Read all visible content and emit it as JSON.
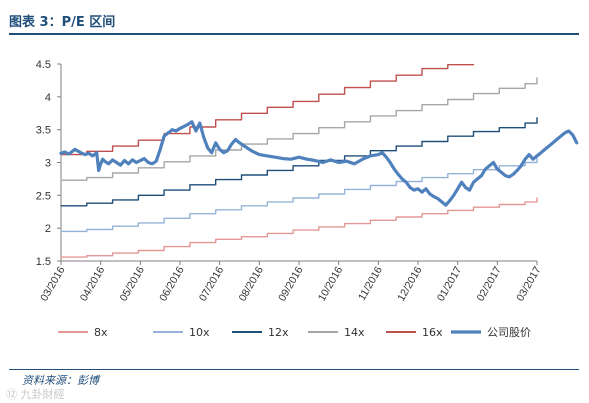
{
  "figure": {
    "title": "图表 3：P/E 区间",
    "source": "资料来源：彭博",
    "watermark": "⑫ 九卦財經"
  },
  "chart_data": {
    "type": "line",
    "title": "",
    "xlabel": "",
    "ylabel": "",
    "ylim": [
      1.5,
      4.5
    ],
    "yticks": [
      1.5,
      2,
      2.5,
      3,
      3.5,
      4,
      4.5
    ],
    "xticks": [
      "03/2016",
      "04/2016",
      "05/2016",
      "06/2016",
      "07/2016",
      "08/2016",
      "09/2016",
      "10/2016",
      "11/2016",
      "12/2016",
      "01/2017",
      "02/2017",
      "03/2017"
    ],
    "grid": false,
    "legend_position": "bottom",
    "series": [
      {
        "name": "8x",
        "color": "#e39896",
        "width": 1.4,
        "step_values": [
          1.56,
          1.58,
          1.62,
          1.66,
          1.72,
          1.78,
          1.83,
          1.87,
          1.92,
          1.97,
          2.02,
          2.07,
          2.12,
          2.17,
          2.22,
          2.27,
          2.32,
          2.36,
          2.4,
          2.43
        ]
      },
      {
        "name": "10x",
        "color": "#95b3d7",
        "width": 1.4,
        "step_values": [
          1.95,
          1.98,
          2.03,
          2.08,
          2.15,
          2.22,
          2.28,
          2.34,
          2.4,
          2.46,
          2.52,
          2.59,
          2.65,
          2.71,
          2.77,
          2.83,
          2.89,
          2.95,
          3.0,
          3.04
        ]
      },
      {
        "name": "12x",
        "color": "#1f4e79",
        "width": 1.4,
        "step_values": [
          2.34,
          2.38,
          2.43,
          2.5,
          2.58,
          2.66,
          2.74,
          2.81,
          2.88,
          2.95,
          3.03,
          3.1,
          3.18,
          3.25,
          3.32,
          3.4,
          3.47,
          3.53,
          3.6,
          3.65
        ]
      },
      {
        "name": "14x",
        "color": "#a6a6a6",
        "width": 1.4,
        "step_values": [
          2.73,
          2.77,
          2.84,
          2.92,
          3.01,
          3.1,
          3.19,
          3.28,
          3.36,
          3.44,
          3.53,
          3.62,
          3.71,
          3.79,
          3.88,
          3.96,
          4.05,
          4.13,
          4.2,
          4.26
        ]
      },
      {
        "name": "16x",
        "color": "#c0504d",
        "width": 1.4,
        "step_values": [
          3.12,
          3.17,
          3.25,
          3.34,
          3.44,
          3.54,
          3.65,
          3.75,
          3.84,
          3.93,
          4.04,
          4.14,
          4.24,
          4.33,
          4.43,
          4.49
        ]
      },
      {
        "name": "公司股价",
        "color": "#4f81bd",
        "width": 3.2,
        "x": [
          0.0,
          0.1,
          0.2,
          0.35,
          0.5,
          0.6,
          0.7,
          0.8,
          0.9,
          0.95,
          1.0,
          1.05,
          1.1,
          1.2,
          1.3,
          1.4,
          1.5,
          1.6,
          1.7,
          1.8,
          1.9,
          2.0,
          2.1,
          2.2,
          2.3,
          2.4,
          2.5,
          2.6,
          2.7,
          2.75,
          2.8,
          2.9,
          3.0,
          3.1,
          3.2,
          3.3,
          3.4,
          3.5,
          3.6,
          3.7,
          3.8,
          3.9,
          4.0,
          4.1,
          4.2,
          4.3,
          4.4,
          4.5,
          4.6,
          4.7,
          4.8,
          4.9,
          5.0,
          5.2,
          5.4,
          5.6,
          5.8,
          6.0,
          6.2,
          6.4,
          6.6,
          6.8,
          7.0,
          7.2,
          7.4,
          7.6,
          7.8,
          8.0,
          8.1,
          8.2,
          8.3,
          8.4,
          8.5,
          8.6,
          8.7,
          8.8,
          8.9,
          9.0,
          9.1,
          9.2,
          9.3,
          9.4,
          9.5,
          9.6,
          9.7,
          9.8,
          9.9,
          10.0,
          10.1,
          10.2,
          10.3,
          10.4,
          10.5,
          10.6,
          10.7,
          10.8,
          10.9,
          11.0,
          11.1,
          11.2,
          11.3,
          11.4,
          11.5,
          11.6,
          11.7,
          11.8,
          11.9,
          12.0,
          12.1,
          12.2,
          12.3,
          12.4,
          12.5,
          12.6,
          12.7,
          12.8,
          12.9,
          13.0
        ],
        "y": [
          3.14,
          3.16,
          3.13,
          3.2,
          3.15,
          3.12,
          3.14,
          3.1,
          3.15,
          2.88,
          2.98,
          3.05,
          3.02,
          2.98,
          3.04,
          3.0,
          2.96,
          3.03,
          2.98,
          3.04,
          3.0,
          3.03,
          3.06,
          3.0,
          2.98,
          3.02,
          3.2,
          3.4,
          3.45,
          3.47,
          3.5,
          3.48,
          3.52,
          3.55,
          3.58,
          3.62,
          3.48,
          3.6,
          3.38,
          3.22,
          3.15,
          3.3,
          3.2,
          3.15,
          3.18,
          3.28,
          3.35,
          3.3,
          3.26,
          3.22,
          3.18,
          3.15,
          3.12,
          3.1,
          3.08,
          3.06,
          3.05,
          3.08,
          3.05,
          3.03,
          3.0,
          3.04,
          3.0,
          3.02,
          2.98,
          3.05,
          3.1,
          3.12,
          3.15,
          3.08,
          3.0,
          2.9,
          2.82,
          2.75,
          2.7,
          2.62,
          2.58,
          2.6,
          2.55,
          2.6,
          2.52,
          2.48,
          2.45,
          2.4,
          2.35,
          2.42,
          2.5,
          2.6,
          2.7,
          2.62,
          2.58,
          2.7,
          2.75,
          2.8,
          2.9,
          2.95,
          3.0,
          2.9,
          2.85,
          2.8,
          2.78,
          2.82,
          2.88,
          2.95,
          3.05,
          3.12,
          3.05,
          3.1,
          3.15,
          3.2,
          3.25,
          3.3,
          3.35,
          3.4,
          3.45,
          3.48,
          3.42,
          3.3
        ]
      }
    ]
  }
}
